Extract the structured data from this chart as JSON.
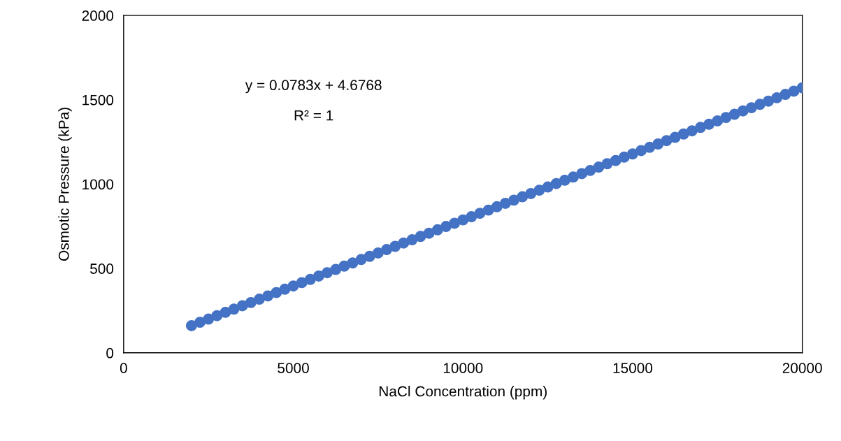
{
  "chart_data": {
    "type": "scatter",
    "xlabel": "NaCl Concentration (ppm)",
    "ylabel": "Osmotic Pressure (kPa)",
    "annotations": [
      "y = 0.0783x + 4.6768",
      "R² = 1"
    ],
    "x": [
      2000,
      2250,
      2500,
      2750,
      3000,
      3250,
      3500,
      3750,
      4000,
      4250,
      4500,
      4750,
      5000,
      5250,
      5500,
      5750,
      6000,
      6250,
      6500,
      6750,
      7000,
      7250,
      7500,
      7750,
      8000,
      8250,
      8500,
      8750,
      9000,
      9250,
      9500,
      9750,
      10000,
      10250,
      10500,
      10750,
      11000,
      11250,
      11500,
      11750,
      12000,
      12250,
      12500,
      12750,
      13000,
      13250,
      13500,
      13750,
      14000,
      14250,
      14500,
      14750,
      15000,
      15250,
      15500,
      15750,
      16000,
      16250,
      16500,
      16750,
      17000,
      17250,
      17500,
      17750,
      18000,
      18250,
      18500,
      18750,
      19000,
      19250,
      19500,
      19750,
      20000
    ],
    "series": [
      {
        "color": "#4472c4",
        "values": [
          161,
          181,
          200,
          220,
          240,
          259,
          279,
          298,
          318,
          337,
          357,
          377,
          396,
          416,
          435,
          455,
          475,
          494,
          514,
          533,
          553,
          572,
          592,
          612,
          631,
          651,
          670,
          690,
          709,
          729,
          749,
          768,
          788,
          807,
          827,
          846,
          866,
          886,
          905,
          925,
          944,
          964,
          983,
          1003,
          1023,
          1042,
          1062,
          1081,
          1101,
          1121,
          1140,
          1160,
          1179,
          1199,
          1218,
          1238,
          1258,
          1277,
          1297,
          1316,
          1336,
          1355,
          1375,
          1395,
          1414,
          1434,
          1453,
          1473,
          1492,
          1512,
          1532,
          1551,
          1571
        ]
      }
    ],
    "xlim": [
      0,
      20000
    ],
    "xticks": [
      0,
      5000,
      10000,
      15000,
      20000
    ],
    "ylim": [
      0,
      2000
    ],
    "yticks": [
      0,
      500,
      1000,
      1500,
      2000
    ],
    "marker": "circle",
    "grid": false,
    "legend": false
  }
}
